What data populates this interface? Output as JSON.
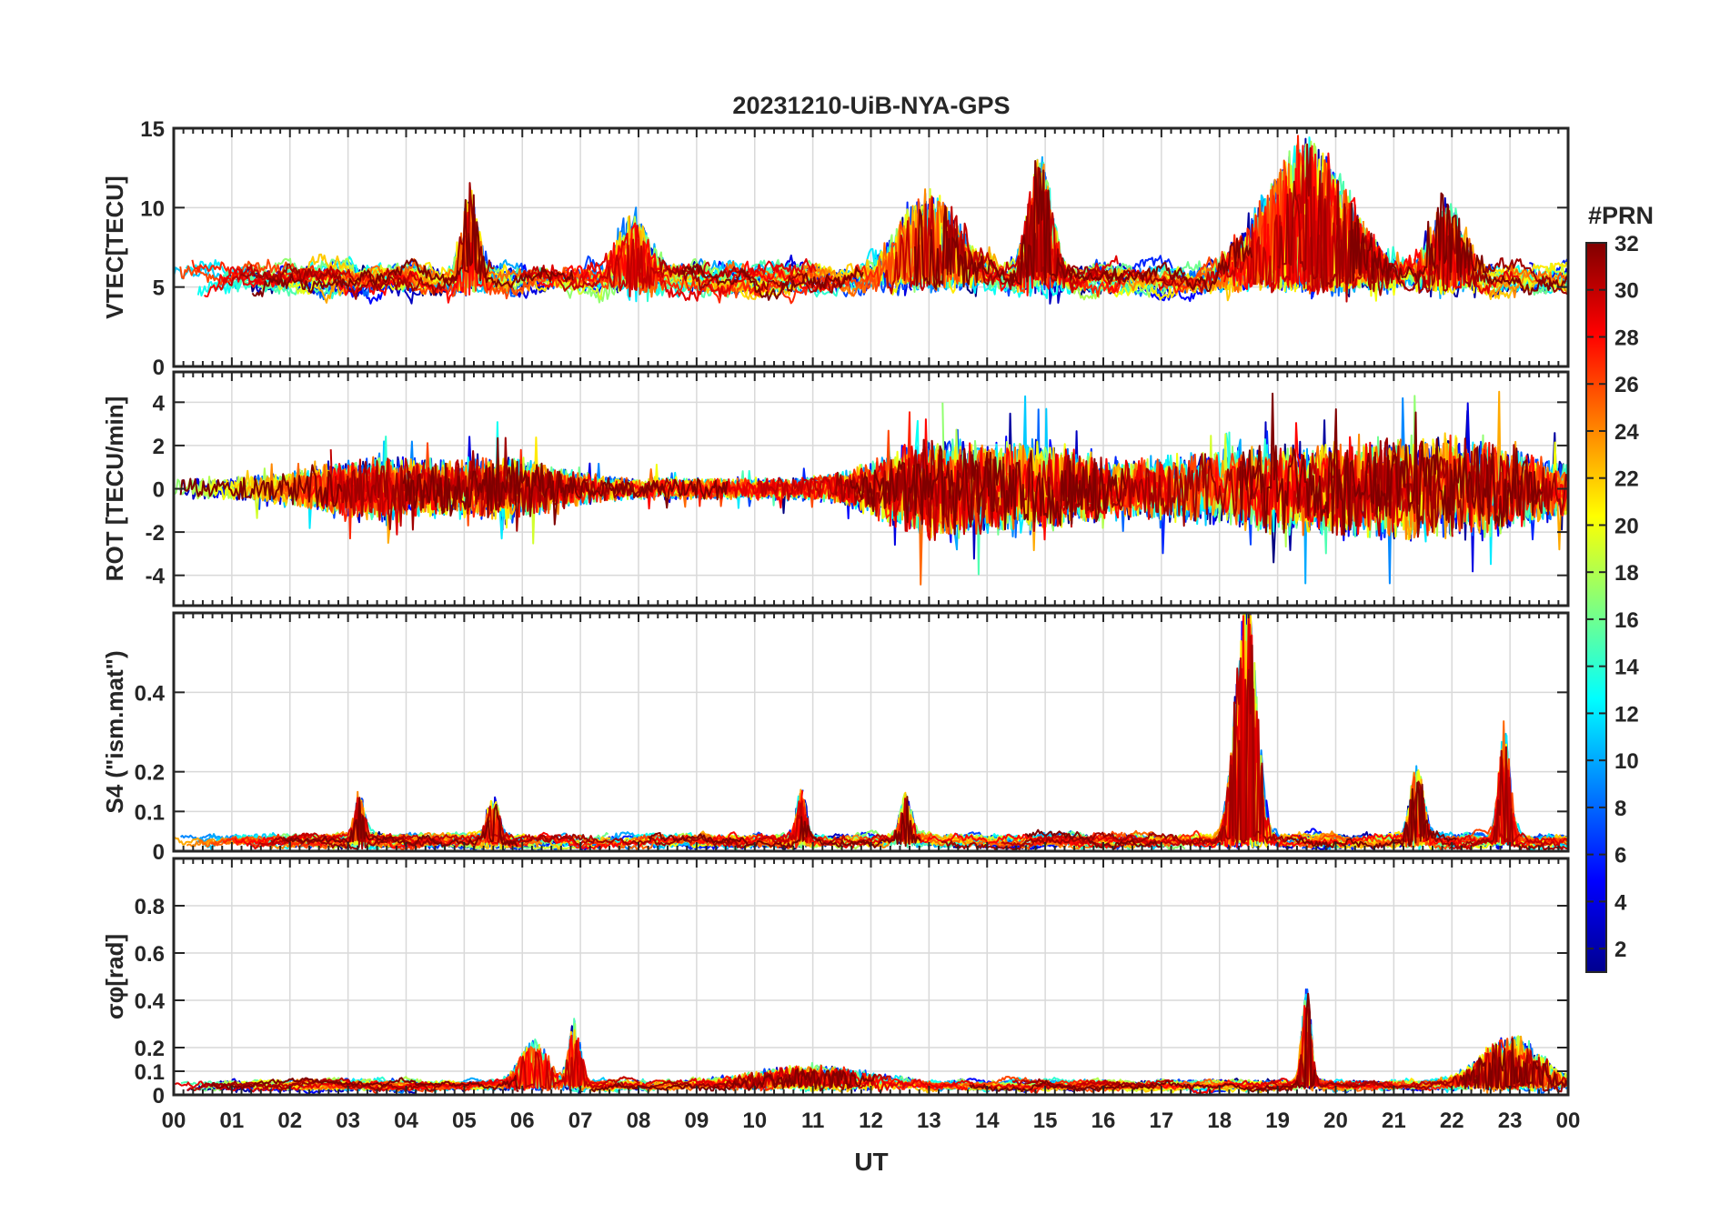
{
  "chart_data": {
    "type": "line",
    "title": "20231210-UiB-NYA-GPS",
    "xlabel": "UT",
    "x_tick_labels": [
      "00",
      "01",
      "02",
      "03",
      "04",
      "05",
      "06",
      "07",
      "08",
      "09",
      "10",
      "11",
      "12",
      "13",
      "14",
      "15",
      "16",
      "17",
      "18",
      "19",
      "20",
      "21",
      "22",
      "23",
      "00"
    ],
    "x_range_hours": [
      0,
      24
    ],
    "grid": true,
    "colormap": "jet",
    "colorbar": {
      "label": "#PRN",
      "range": [
        1,
        32
      ],
      "tick_labels": [
        "2",
        "4",
        "6",
        "8",
        "10",
        "12",
        "14",
        "16",
        "18",
        "20",
        "22",
        "24",
        "26",
        "28",
        "30",
        "32"
      ]
    },
    "panels": [
      {
        "id": "vtec",
        "ylabel": "VTEC[TECU]",
        "ylim": [
          0,
          15
        ],
        "y_tick_labels": [
          "0",
          "5",
          "10",
          "15"
        ],
        "y_tick_values": [
          0,
          5,
          10,
          15
        ],
        "baseline": 5.5,
        "noise": 1.1,
        "floor": 1.5,
        "events": [
          {
            "hour": 5.1,
            "value": 4,
            "width": 0.15
          },
          {
            "hour": 7.9,
            "value": 3,
            "width": 0.25
          },
          {
            "hour": 13.0,
            "value": 4,
            "width": 0.5
          },
          {
            "hour": 14.9,
            "value": 6,
            "width": 0.2
          },
          {
            "hour": 19.5,
            "value": 6.5,
            "width": 0.7
          },
          {
            "hour": 21.9,
            "value": 3.5,
            "width": 0.3
          }
        ]
      },
      {
        "id": "rot",
        "ylabel": "ROT [TECU/min]",
        "ylim": [
          -5.4,
          5.4
        ],
        "y_tick_labels": [
          "-4",
          "-2",
          "0",
          "2",
          "4"
        ],
        "y_tick_values": [
          -4,
          -2,
          0,
          2,
          4
        ],
        "baseline": 0,
        "noise": 0.45,
        "symmetric": true,
        "events": [
          {
            "hour": 3.5,
            "value": 0.8,
            "width": 1.0
          },
          {
            "hour": 5.7,
            "value": 0.8,
            "width": 0.8
          },
          {
            "hour": 13.2,
            "value": 1.6,
            "width": 0.9
          },
          {
            "hour": 15.0,
            "value": 1.0,
            "width": 0.6
          },
          {
            "hour": 19.3,
            "value": 1.4,
            "width": 2.5
          },
          {
            "hour": 22.3,
            "value": 1.0,
            "width": 1.2
          }
        ]
      },
      {
        "id": "s4",
        "ylabel": "S4 (\"ism.mat\")",
        "ylim": [
          0,
          0.6
        ],
        "y_tick_labels": [
          "0",
          "0.1",
          "0.2",
          "0.4"
        ],
        "y_tick_values": [
          0,
          0.1,
          0.2,
          0.4
        ],
        "baseline": 0.025,
        "noise": 0.02,
        "floor": 0.005,
        "events": [
          {
            "hour": 3.2,
            "value": 0.09,
            "width": 0.08
          },
          {
            "hour": 5.5,
            "value": 0.09,
            "width": 0.1
          },
          {
            "hour": 10.8,
            "value": 0.11,
            "width": 0.08
          },
          {
            "hour": 12.6,
            "value": 0.09,
            "width": 0.1
          },
          {
            "hour": 18.45,
            "value": 0.5,
            "width": 0.18
          },
          {
            "hour": 21.4,
            "value": 0.15,
            "width": 0.12
          },
          {
            "hour": 22.9,
            "value": 0.22,
            "width": 0.1
          }
        ]
      },
      {
        "id": "sigma_phi",
        "ylabel": "σφ[rad]",
        "ylim": [
          0,
          1.0
        ],
        "y_tick_labels": [
          "0",
          "0.1",
          "0.2",
          "0.4",
          "0.6",
          "0.8"
        ],
        "y_tick_values": [
          0,
          0.1,
          0.2,
          0.4,
          0.6,
          0.8
        ],
        "baseline": 0.04,
        "noise": 0.025,
        "floor": 0.005,
        "events": [
          {
            "hour": 6.2,
            "value": 0.14,
            "width": 0.25
          },
          {
            "hour": 6.9,
            "value": 0.22,
            "width": 0.1
          },
          {
            "hour": 11.0,
            "value": 0.06,
            "width": 0.9
          },
          {
            "hour": 19.5,
            "value": 0.32,
            "width": 0.08
          },
          {
            "hour": 23.0,
            "value": 0.16,
            "width": 0.5
          }
        ]
      }
    ],
    "series_prns": [
      1,
      2,
      3,
      4,
      5,
      6,
      7,
      8,
      9,
      10,
      11,
      12,
      13,
      14,
      15,
      16,
      17,
      18,
      19,
      20,
      21,
      22,
      23,
      24,
      25,
      26,
      27,
      28,
      29,
      30,
      31,
      32
    ]
  }
}
